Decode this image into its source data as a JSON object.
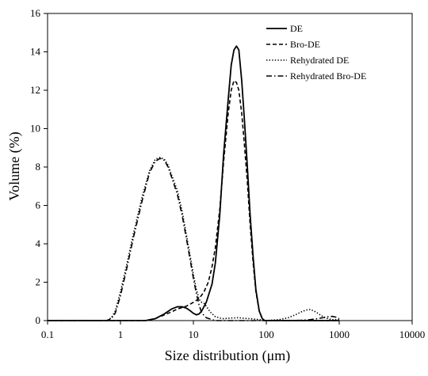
{
  "chart_data": {
    "type": "line",
    "title": "",
    "xlabel": "Size distribution (μm)",
    "ylabel": "Volume (%)",
    "x_scale": "log",
    "xlim": [
      0.1,
      10000
    ],
    "ylim": [
      0,
      16
    ],
    "x_ticks": [
      "0.1",
      "1",
      "10",
      "100",
      "1000",
      "10000"
    ],
    "y_ticks": [
      "0",
      "2",
      "4",
      "6",
      "8",
      "10",
      "12",
      "14",
      "16"
    ],
    "grid": false,
    "legend_position": "top-right",
    "series": [
      {
        "name": "DE",
        "style": "solid",
        "x": [
          0.1,
          2.2,
          3,
          4,
          5,
          6,
          7,
          8,
          9,
          10,
          11,
          12,
          13,
          15,
          18,
          20,
          23,
          26,
          30,
          33,
          36,
          39,
          42,
          46,
          50,
          55,
          60,
          66,
          72,
          80,
          88,
          95,
          100,
          1000
        ],
        "y": [
          0,
          0,
          0.1,
          0.35,
          0.6,
          0.72,
          0.72,
          0.65,
          0.52,
          0.38,
          0.3,
          0.35,
          0.5,
          0.95,
          1.9,
          3.0,
          5.5,
          8.7,
          11.5,
          13.3,
          14.1,
          14.3,
          14.1,
          12.5,
          10.5,
          8.0,
          5.5,
          3.3,
          1.6,
          0.5,
          0.1,
          0,
          0,
          0
        ]
      },
      {
        "name": "Bro-DE",
        "style": "dashed",
        "x": [
          0.1,
          2.2,
          3,
          4,
          5,
          6,
          8,
          10,
          12,
          14,
          16,
          18,
          20,
          23,
          26,
          30,
          33,
          36,
          39,
          42,
          46,
          50,
          55,
          60,
          66,
          72,
          80,
          88,
          95,
          100,
          1000
        ],
        "y": [
          0,
          0,
          0.1,
          0.3,
          0.45,
          0.6,
          0.75,
          0.95,
          1.15,
          1.5,
          2.0,
          2.8,
          3.8,
          5.8,
          8.3,
          10.8,
          12.0,
          12.5,
          12.4,
          12.0,
          10.8,
          9.2,
          7.2,
          5.0,
          3.0,
          1.5,
          0.5,
          0.1,
          0,
          0,
          0
        ]
      },
      {
        "name": "Rehydrated DE",
        "style": "dotted",
        "x": [
          0.1,
          0.65,
          0.75,
          0.85,
          1,
          1.2,
          1.5,
          2,
          2.5,
          3,
          3.5,
          4,
          4.5,
          5,
          6,
          7,
          8,
          9,
          10,
          11,
          12,
          13,
          14,
          15,
          17,
          20,
          25,
          30,
          40,
          50,
          60,
          80,
          100,
          150,
          200,
          250,
          300,
          350,
          400,
          450,
          500,
          600,
          700,
          800,
          1000
        ],
        "y": [
          0,
          0,
          0.15,
          0.5,
          1.5,
          2.8,
          4.5,
          6.5,
          7.8,
          8.4,
          8.5,
          8.4,
          8.1,
          7.6,
          6.8,
          5.7,
          4.5,
          3.4,
          2.4,
          1.6,
          1.1,
          0.95,
          0.9,
          0.75,
          0.45,
          0.2,
          0.1,
          0.12,
          0.15,
          0.12,
          0.1,
          0.05,
          0,
          0.05,
          0.15,
          0.3,
          0.45,
          0.55,
          0.58,
          0.5,
          0.4,
          0.2,
          0.1,
          0.05,
          0.05
        ]
      },
      {
        "name": "Rehydrated Bro-DE",
        "style": "dashdot",
        "x": [
          0.1,
          0.65,
          0.75,
          0.85,
          1,
          1.2,
          1.5,
          2,
          2.5,
          3,
          3.5,
          4,
          4.5,
          5,
          6,
          7,
          8,
          9,
          10,
          11,
          12,
          13,
          15,
          18,
          20,
          25,
          30,
          50,
          80,
          100,
          200,
          300,
          400,
          500,
          600,
          700,
          800,
          900,
          1000
        ],
        "y": [
          0,
          0,
          0.1,
          0.4,
          1.3,
          2.6,
          4.3,
          6.3,
          7.7,
          8.3,
          8.45,
          8.35,
          8.0,
          7.5,
          6.6,
          5.5,
          4.3,
          3.2,
          2.2,
          1.4,
          0.8,
          0.4,
          0.15,
          0.05,
          0,
          0,
          0,
          0,
          0,
          0,
          0,
          0.02,
          0.05,
          0.1,
          0.15,
          0.2,
          0.22,
          0.18,
          0.1
        ]
      }
    ]
  }
}
